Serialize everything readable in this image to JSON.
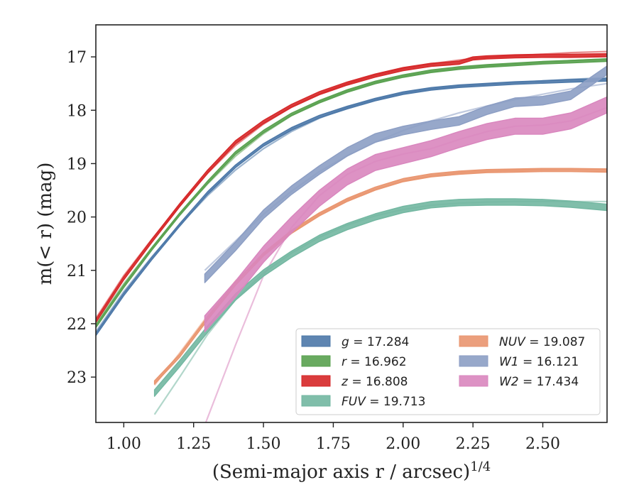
{
  "chart_data": {
    "type": "line",
    "xlabel": "(Semi-major axis r / arcsec)",
    "xlabel_exponent": "1/4",
    "ylabel": "m(< r) (mag)",
    "xlim": [
      0.9,
      2.73
    ],
    "ylim": [
      23.85,
      16.4
    ],
    "y_inverted": true,
    "xticks": [
      1.0,
      1.25,
      1.5,
      1.75,
      2.0,
      2.25,
      2.5
    ],
    "xtick_labels": [
      "1.00",
      "1.25",
      "1.50",
      "1.75",
      "2.00",
      "2.25",
      "2.50"
    ],
    "yticks": [
      17,
      18,
      19,
      20,
      21,
      22,
      23
    ],
    "ytick_labels": [
      "17",
      "18",
      "19",
      "20",
      "21",
      "22",
      "23"
    ],
    "grid": false,
    "legend_position": "bottom-right",
    "series": [
      {
        "name": "g",
        "legend_label": "g = 17.284",
        "color": "#4c78a8",
        "band_width": 0.05,
        "x": [
          0.9,
          1.0,
          1.1,
          1.2,
          1.3,
          1.4,
          1.5,
          1.6,
          1.7,
          1.8,
          1.9,
          2.0,
          2.1,
          2.2,
          2.3,
          2.4,
          2.5,
          2.6,
          2.73
        ],
        "y": [
          22.2,
          21.45,
          20.78,
          20.15,
          19.55,
          19.05,
          18.65,
          18.35,
          18.12,
          17.95,
          17.8,
          17.68,
          17.6,
          17.55,
          17.52,
          17.49,
          17.47,
          17.45,
          17.43
        ],
        "model_y": [
          22.15,
          21.4,
          20.75,
          20.15,
          19.6,
          19.12,
          18.72,
          18.4,
          18.15,
          17.95,
          17.8,
          17.68,
          17.6,
          17.55,
          17.51,
          17.48,
          17.45,
          17.42,
          17.39
        ]
      },
      {
        "name": "r",
        "legend_label": "r = 16.962",
        "color": "#59a14f",
        "band_width": 0.05,
        "x": [
          0.9,
          1.0,
          1.1,
          1.2,
          1.3,
          1.4,
          1.5,
          1.6,
          1.7,
          1.8,
          1.9,
          2.0,
          2.1,
          2.2,
          2.3,
          2.4,
          2.5,
          2.6,
          2.73
        ],
        "y": [
          22.05,
          21.3,
          20.6,
          19.95,
          19.35,
          18.8,
          18.4,
          18.08,
          17.84,
          17.64,
          17.48,
          17.36,
          17.27,
          17.21,
          17.17,
          17.14,
          17.11,
          17.09,
          17.06
        ],
        "model_y": [
          22.0,
          21.25,
          20.58,
          19.95,
          19.38,
          18.86,
          18.44,
          18.1,
          17.84,
          17.64,
          17.48,
          17.36,
          17.28,
          17.22,
          17.17,
          17.13,
          17.1,
          17.07,
          17.04
        ]
      },
      {
        "name": "z",
        "legend_label": "z = 16.808",
        "color": "#d62728",
        "band_width": 0.06,
        "x": [
          0.9,
          1.0,
          1.1,
          1.2,
          1.3,
          1.4,
          1.5,
          1.6,
          1.7,
          1.8,
          1.9,
          2.0,
          2.1,
          2.2,
          2.25,
          2.3,
          2.4,
          2.5,
          2.6,
          2.73
        ],
        "y": [
          21.95,
          21.15,
          20.45,
          19.78,
          19.15,
          18.6,
          18.22,
          17.92,
          17.68,
          17.5,
          17.35,
          17.23,
          17.15,
          17.11,
          17.03,
          17.01,
          16.99,
          16.98,
          16.98,
          16.97
        ],
        "model_y": [
          21.9,
          21.1,
          20.42,
          19.78,
          19.18,
          18.66,
          18.26,
          17.94,
          17.7,
          17.5,
          17.34,
          17.22,
          17.13,
          17.06,
          17.03,
          17.01,
          16.98,
          16.95,
          16.92,
          16.9
        ]
      },
      {
        "name": "FUV",
        "legend_label": "FUV = 19.713",
        "color": "#72b7a1",
        "band_width": 0.12,
        "x": [
          1.11,
          1.2,
          1.3,
          1.4,
          1.5,
          1.6,
          1.7,
          1.8,
          1.9,
          2.0,
          2.1,
          2.2,
          2.3,
          2.4,
          2.5,
          2.6,
          2.73
        ],
        "y": [
          23.3,
          22.75,
          22.1,
          21.5,
          21.05,
          20.7,
          20.4,
          20.18,
          20.0,
          19.86,
          19.77,
          19.73,
          19.72,
          19.72,
          19.73,
          19.76,
          19.82
        ],
        "model_y": [
          23.7,
          23.0,
          22.2,
          21.55,
          21.05,
          20.68,
          20.38,
          20.15,
          19.98,
          19.86,
          19.78,
          19.74,
          19.72,
          19.71,
          19.71,
          19.71,
          19.71
        ]
      },
      {
        "name": "NUV",
        "legend_label": "NUV = 19.087",
        "color": "#e9956f",
        "band_width": 0.06,
        "x": [
          1.11,
          1.2,
          1.3,
          1.4,
          1.5,
          1.6,
          1.7,
          1.8,
          1.9,
          2.0,
          2.1,
          2.2,
          2.3,
          2.4,
          2.5,
          2.6,
          2.73
        ],
        "y": [
          23.1,
          22.6,
          21.9,
          21.25,
          20.7,
          20.28,
          19.95,
          19.68,
          19.47,
          19.31,
          19.22,
          19.17,
          19.14,
          19.13,
          19.12,
          19.12,
          19.13
        ],
        "model_y": [
          23.15,
          22.55,
          21.85,
          21.2,
          20.7,
          20.28,
          19.95,
          19.68,
          19.48,
          19.33,
          19.23,
          19.17,
          19.14,
          19.12,
          19.11,
          19.1,
          19.1
        ]
      },
      {
        "name": "W1",
        "legend_label": "W1 = 16.121",
        "color": "#8c9ec4",
        "band_width": 0.16,
        "x": [
          1.29,
          1.4,
          1.5,
          1.6,
          1.7,
          1.8,
          1.9,
          2.0,
          2.1,
          2.2,
          2.3,
          2.4,
          2.5,
          2.6,
          2.73
        ],
        "y": [
          21.15,
          20.55,
          19.95,
          19.5,
          19.12,
          18.78,
          18.52,
          18.38,
          18.28,
          18.2,
          18.0,
          17.85,
          17.82,
          17.72,
          17.25
        ],
        "model_y": [
          21.0,
          20.45,
          19.95,
          19.52,
          19.15,
          18.85,
          18.6,
          18.38,
          18.2,
          18.05,
          17.92,
          17.8,
          17.7,
          17.6,
          17.5
        ]
      },
      {
        "name": "W2",
        "legend_label": "W2 = 17.434",
        "color": "#d986be",
        "band_width": 0.3,
        "x": [
          1.29,
          1.4,
          1.5,
          1.6,
          1.7,
          1.8,
          1.9,
          2.0,
          2.1,
          2.2,
          2.3,
          2.4,
          2.5,
          2.6,
          2.73
        ],
        "y": [
          22.0,
          21.35,
          20.7,
          20.15,
          19.65,
          19.25,
          18.98,
          18.85,
          18.72,
          18.55,
          18.4,
          18.3,
          18.3,
          18.2,
          17.9
        ],
        "model_y": [
          23.9,
          22.4,
          21.1,
          20.2,
          19.6,
          19.2,
          18.96,
          18.82,
          18.72,
          18.55,
          18.4,
          18.3,
          18.28,
          18.2,
          17.95
        ]
      }
    ]
  }
}
